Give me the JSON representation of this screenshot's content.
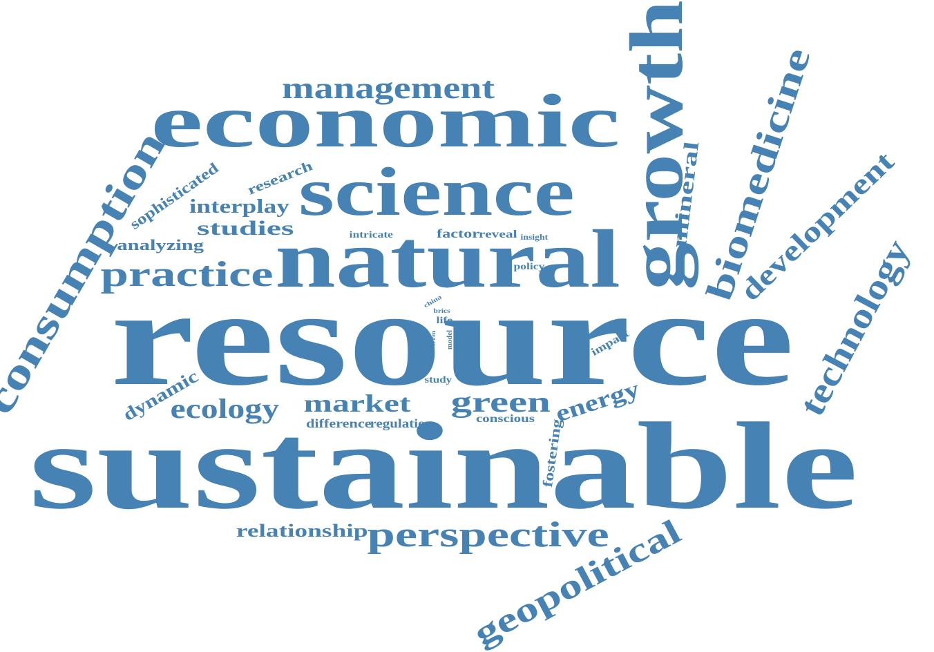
{
  "colors": {
    "word": "#4682b4",
    "background": "#ffffff"
  },
  "words": [
    "resource",
    "sustainable",
    "natural",
    "economic",
    "science",
    "growth",
    "consumption",
    "biomedicine",
    "technology",
    "development",
    "geopolitical",
    "management",
    "practice",
    "perspective",
    "market",
    "green",
    "ecology",
    "energy",
    "relationship",
    "mineral",
    "interplay",
    "studies",
    "analyzing",
    "sophisticated",
    "research",
    "dynamic",
    "difference",
    "regulation",
    "conscious",
    "fostering",
    "factor",
    "reveal",
    "intricate",
    "insight",
    "policy",
    "impact",
    "study",
    "china",
    "brics",
    "life",
    "term",
    "model"
  ]
}
